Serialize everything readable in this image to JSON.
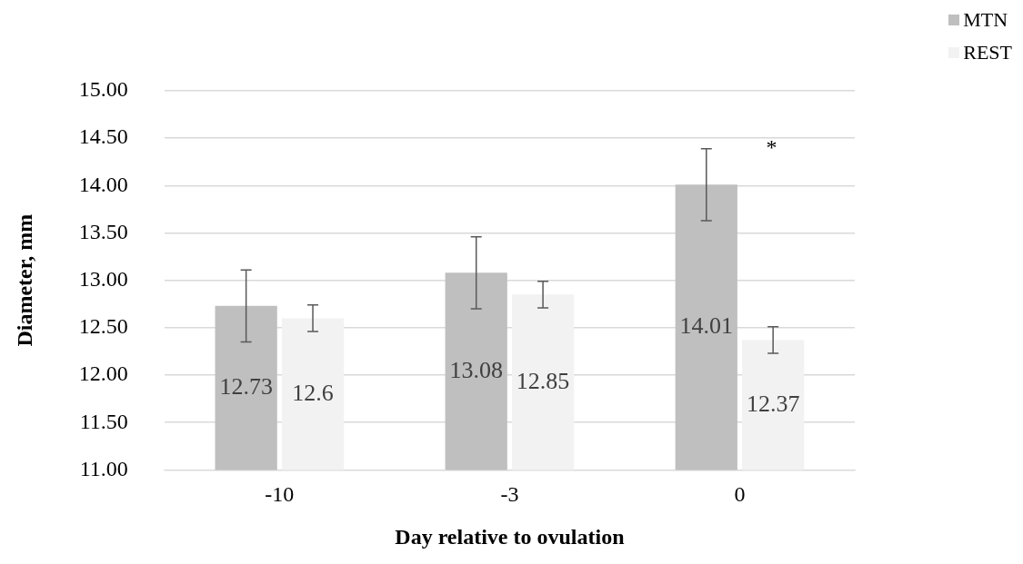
{
  "chart_data": {
    "type": "bar",
    "xlabel": "Day relative to ovulation",
    "ylabel": "Diameter, mm",
    "categories": [
      "-10",
      "-3",
      "0"
    ],
    "series": [
      {
        "name": "MTN",
        "color": "#bfbfbf",
        "values": [
          12.73,
          13.08,
          14.01
        ],
        "errors": [
          0.38,
          0.38,
          0.38
        ]
      },
      {
        "name": "REST",
        "color": "#f2f2f2",
        "values": [
          12.6,
          12.85,
          12.37
        ],
        "errors": [
          0.14,
          0.14,
          0.14
        ]
      }
    ],
    "ylim": [
      11,
      15
    ],
    "yticks": [
      {
        "value": 11,
        "label": "11.00"
      },
      {
        "value": 11.5,
        "label": "11.50"
      },
      {
        "value": 12,
        "label": "12.00"
      },
      {
        "value": 12.5,
        "label": "12.50"
      },
      {
        "value": 13,
        "label": "13.00"
      },
      {
        "value": 13.5,
        "label": "13.50"
      },
      {
        "value": 14,
        "label": "14.00"
      },
      {
        "value": 14.5,
        "label": "14.50"
      },
      {
        "value": 15,
        "label": "15.00"
      }
    ],
    "grid": "y",
    "legend": "top right",
    "data_labels": true,
    "annotations": [
      "*"
    ]
  }
}
